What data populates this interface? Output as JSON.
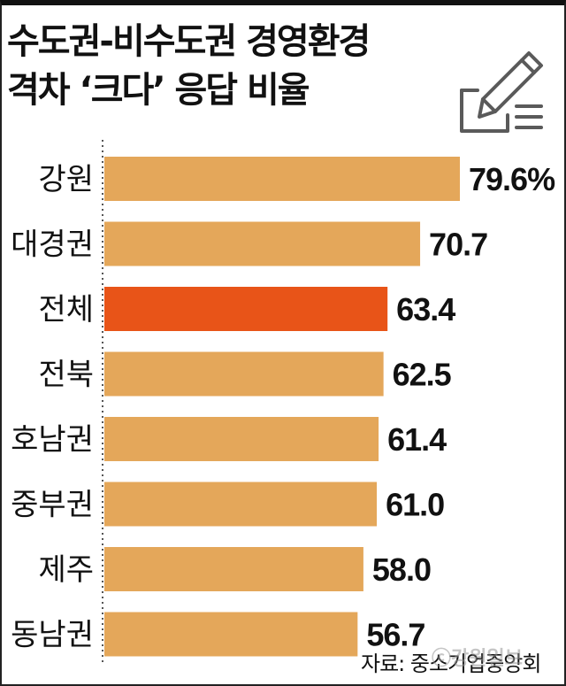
{
  "title_lines": [
    "수도권-비수도권 경영환경",
    "격차 ‘크다’ 응답 비율"
  ],
  "source": "자료: 중소기업중앙회",
  "watermark": "ⓒ강원일보",
  "icon": "pencil-checklist-icon",
  "chart_data": {
    "type": "bar",
    "orientation": "horizontal",
    "title": "수도권-비수도권 경영환경 격차 ‘크다’ 응답 비율",
    "categories": [
      "강원",
      "대경권",
      "전체",
      "전북",
      "호남권",
      "중부권",
      "제주",
      "동남권"
    ],
    "values": [
      79.6,
      70.7,
      63.4,
      62.5,
      61.4,
      61.0,
      58.0,
      56.7
    ],
    "value_labels": [
      "79.6%",
      "70.7",
      "63.4",
      "62.5",
      "61.4",
      "61.0",
      "58.0",
      "56.7"
    ],
    "highlight": "전체",
    "colors": {
      "bar": "#E4A75A",
      "highlight": "#E85418",
      "text": "#111111"
    },
    "xlim": [
      0,
      79.6
    ],
    "grid": false,
    "axis_line": "dotted"
  }
}
